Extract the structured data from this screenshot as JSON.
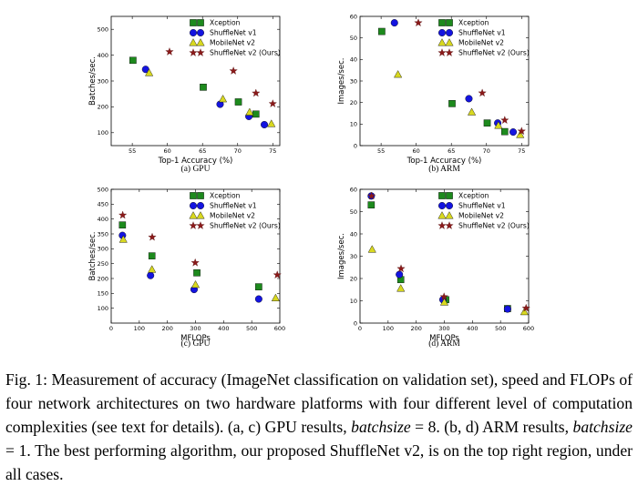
{
  "chart_data": [
    {
      "type": "scatter",
      "id": "a",
      "caption": "(a) GPU",
      "xlabel": "Top-1 Accuracy (%)",
      "ylabel": "Batches/sec.",
      "xlim": [
        52,
        76
      ],
      "ylim": [
        50,
        550
      ],
      "xticks": [
        55,
        60,
        65,
        70,
        75
      ],
      "yticks": [
        100,
        200,
        300,
        400,
        500
      ],
      "series": [
        {
          "name": "Xception",
          "marker": "square",
          "color": "#1d8a1d",
          "x": [
            55.1,
            65.1,
            70.1,
            72.6
          ],
          "y": [
            380,
            276,
            219,
            172
          ]
        },
        {
          "name": "ShuffleNet v1",
          "marker": "circle",
          "color": "#1414e0",
          "x": [
            56.9,
            67.5,
            71.6,
            73.8
          ],
          "y": [
            345,
            210,
            163,
            131
          ]
        },
        {
          "name": "MobileNet v2",
          "marker": "triangle",
          "color": "#d8d820",
          "x": [
            57.4,
            67.9,
            71.7,
            74.8
          ],
          "y": [
            331,
            230,
            179,
            134
          ]
        },
        {
          "name": "ShuffleNet v2 (Ours)",
          "marker": "star",
          "color": "#8b1a1a",
          "x": [
            60.3,
            69.4,
            72.6,
            75.0
          ],
          "y": [
            413,
            339,
            253,
            212
          ]
        }
      ]
    },
    {
      "type": "scatter",
      "id": "b",
      "caption": "(b) ARM",
      "xlabel": "Top-1 Accuracy (%)",
      "ylabel": "Images/sec.",
      "xlim": [
        52,
        76
      ],
      "ylim": [
        0,
        60
      ],
      "xticks": [
        55,
        60,
        65,
        70,
        75
      ],
      "yticks": [
        0,
        10,
        20,
        30,
        40,
        50,
        60
      ],
      "series": [
        {
          "name": "Xception",
          "marker": "square",
          "color": "#1d8a1d",
          "x": [
            55.1,
            65.1,
            70.1,
            72.6
          ],
          "y": [
            53,
            19.5,
            10.5,
            6.5
          ]
        },
        {
          "name": "ShuffleNet v1",
          "marker": "circle",
          "color": "#1414e0",
          "x": [
            56.9,
            67.5,
            71.6,
            73.8
          ],
          "y": [
            57,
            21.8,
            10.5,
            6.3
          ]
        },
        {
          "name": "MobileNet v2",
          "marker": "triangle",
          "color": "#d8d820",
          "x": [
            57.4,
            67.9,
            71.7,
            74.8
          ],
          "y": [
            33,
            15.5,
            9.3,
            5.0
          ]
        },
        {
          "name": "ShuffleNet v2 (Ours)",
          "marker": "star",
          "color": "#8b1a1a",
          "x": [
            60.3,
            69.4,
            72.6,
            75.0
          ],
          "y": [
            57,
            24.4,
            11.8,
            6.7
          ]
        }
      ]
    },
    {
      "type": "scatter",
      "id": "c",
      "caption": "(c) GPU",
      "xlabel": "MFLOPs",
      "ylabel": "Batches/sec.",
      "xlim": [
        0,
        600
      ],
      "ylim": [
        50,
        500
      ],
      "xticks": [
        0,
        100,
        200,
        300,
        400,
        500,
        600
      ],
      "yticks": [
        100,
        150,
        200,
        250,
        300,
        350,
        400,
        450,
        500
      ],
      "series": [
        {
          "name": "Xception",
          "marker": "square",
          "color": "#1d8a1d",
          "x": [
            40,
            145,
            305,
            525
          ],
          "y": [
            380,
            276,
            219,
            172
          ]
        },
        {
          "name": "ShuffleNet v1",
          "marker": "circle",
          "color": "#1414e0",
          "x": [
            40,
            140,
            295,
            525
          ],
          "y": [
            345,
            210,
            163,
            131
          ]
        },
        {
          "name": "MobileNet v2",
          "marker": "triangle",
          "color": "#d8d820",
          "x": [
            43,
            145,
            300,
            585
          ],
          "y": [
            331,
            230,
            179,
            134
          ]
        },
        {
          "name": "ShuffleNet v2 (Ours)",
          "marker": "star",
          "color": "#8b1a1a",
          "x": [
            41,
            146,
            299,
            591
          ],
          "y": [
            413,
            339,
            253,
            212
          ]
        }
      ]
    },
    {
      "type": "scatter",
      "id": "d",
      "caption": "(d) ARM",
      "xlabel": "MFLOPs",
      "ylabel": "Images/sec.",
      "xlim": [
        0,
        600
      ],
      "ylim": [
        0,
        60
      ],
      "xticks": [
        0,
        100,
        200,
        300,
        400,
        500,
        600
      ],
      "yticks": [
        0,
        10,
        20,
        30,
        40,
        50,
        60
      ],
      "series": [
        {
          "name": "Xception",
          "marker": "square",
          "color": "#1d8a1d",
          "x": [
            40,
            145,
            305,
            525
          ],
          "y": [
            53,
            19.5,
            10.5,
            6.5
          ]
        },
        {
          "name": "ShuffleNet v1",
          "marker": "circle",
          "color": "#1414e0",
          "x": [
            40,
            140,
            295,
            525
          ],
          "y": [
            57,
            21.8,
            10.5,
            6.3
          ]
        },
        {
          "name": "MobileNet v2",
          "marker": "triangle",
          "color": "#d8d820",
          "x": [
            43,
            145,
            300,
            585
          ],
          "y": [
            33,
            15.5,
            9.3,
            5.0
          ]
        },
        {
          "name": "ShuffleNet v2 (Ours)",
          "marker": "star",
          "color": "#8b1a1a",
          "x": [
            41,
            146,
            299,
            591
          ],
          "y": [
            57,
            24.4,
            11.8,
            6.7
          ]
        }
      ]
    }
  ],
  "caption": {
    "part1": "Fig. 1: Measurement of accuracy (ImageNet classification on validation set), speed and FLOPs of four network architectures on two hardware platforms with four different level of computation complexities (see text for details). (a, c) GPU results, ",
    "math1": "batchsize",
    "part2": " = 8. (b, d) ARM results, ",
    "math2": "batchsize",
    "part3": " = 1. The best performing algorithm, our proposed ShuffleNet v2, is on the top right region, under all cases."
  }
}
